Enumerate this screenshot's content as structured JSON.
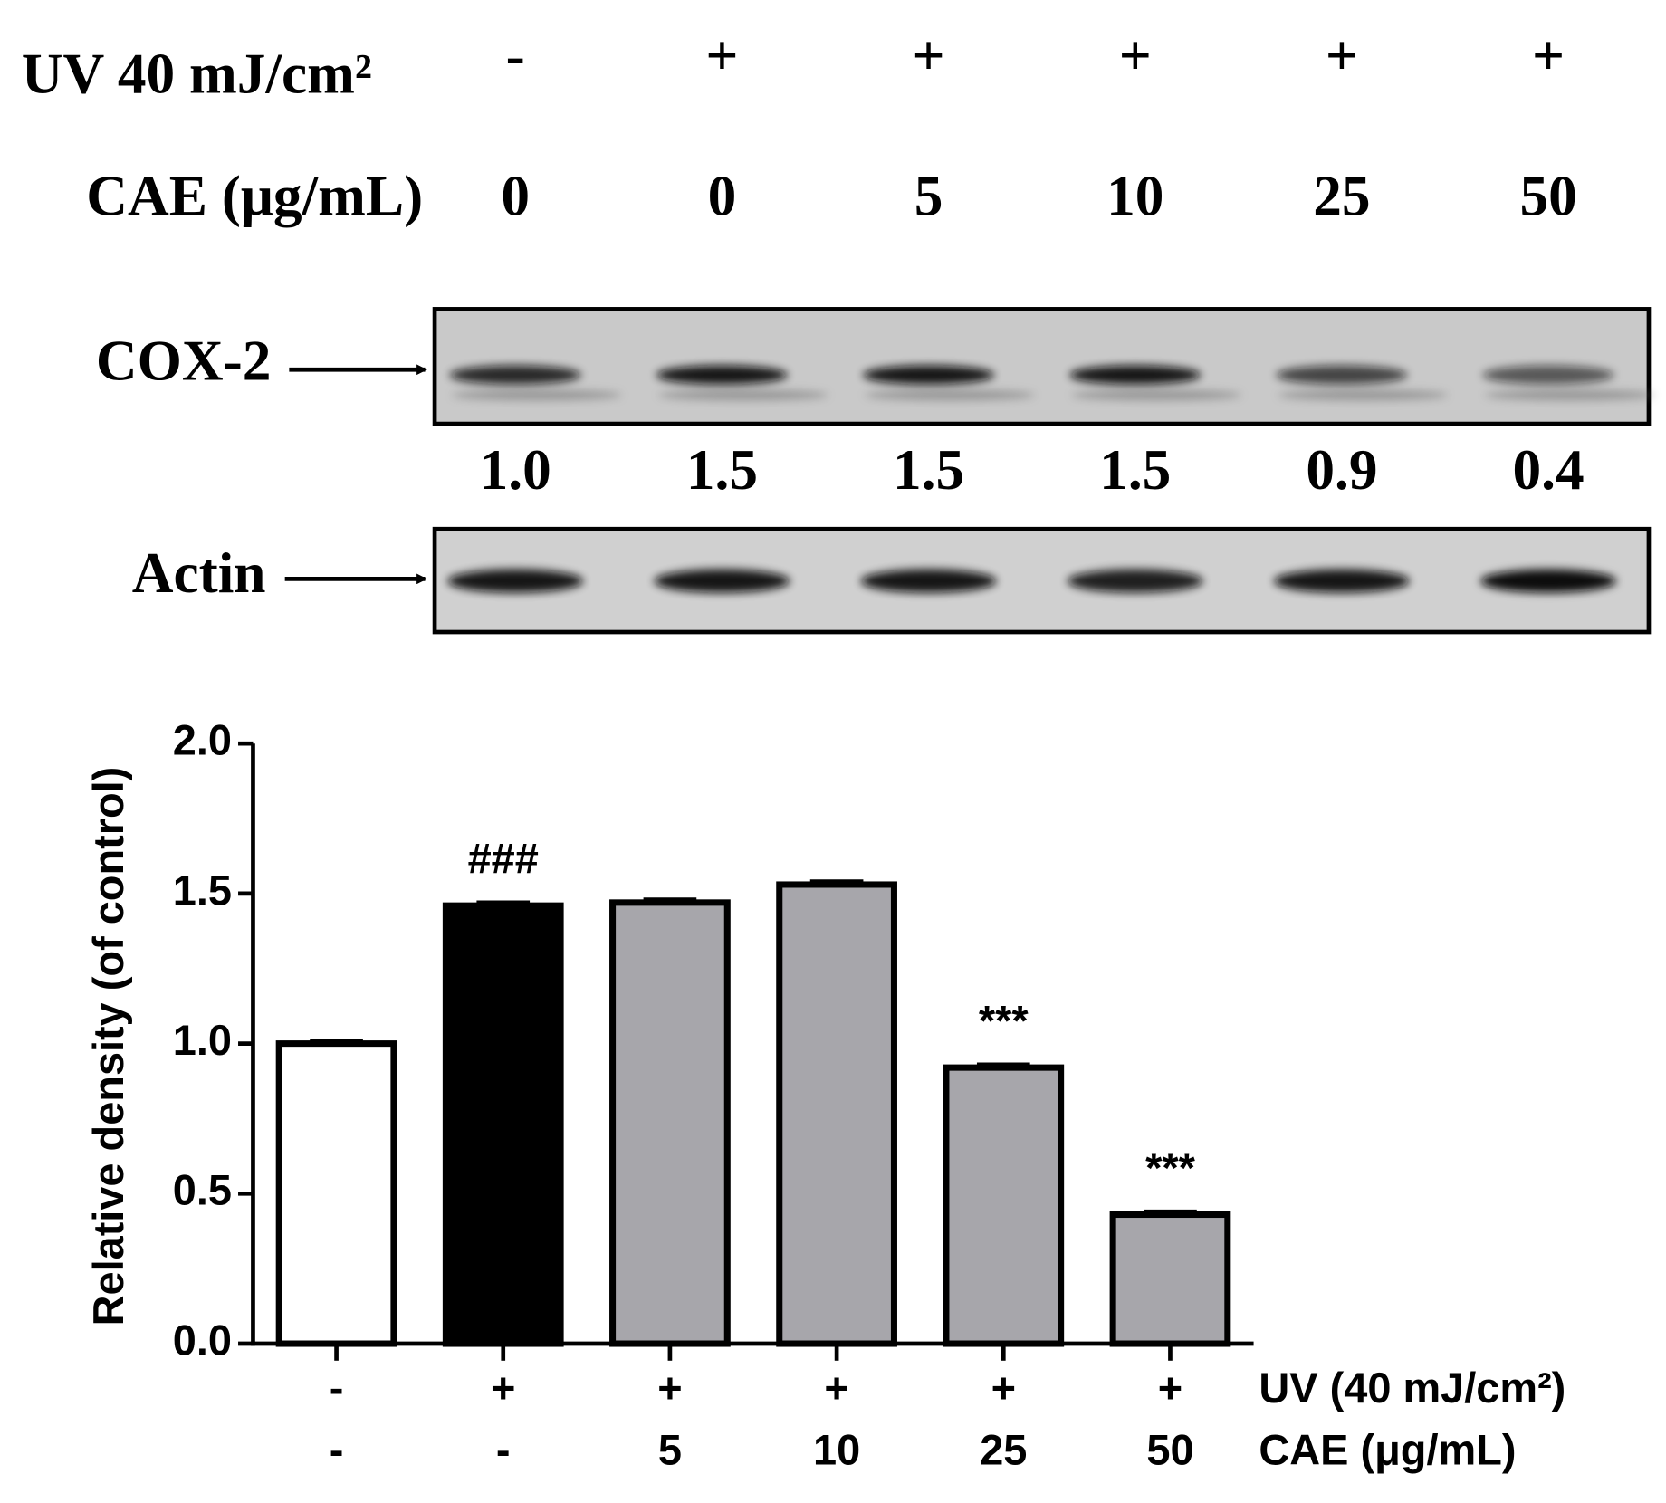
{
  "blot": {
    "uv_label": "UV 40 mJ/cm²",
    "uv": [
      "-",
      "+",
      "+",
      "+",
      "+",
      "+"
    ],
    "cae_label": "CAE (μg/mL)",
    "cae": [
      "0",
      "0",
      "5",
      "10",
      "25",
      "50"
    ],
    "cox2_label": "COX-2",
    "cox2_ratios": [
      "1.0",
      "1.5",
      "1.5",
      "1.5",
      "0.9",
      "0.4"
    ],
    "actin_label": "Actin"
  },
  "chart_data": {
    "type": "bar",
    "y_label": "Relative density (of control)",
    "values": [
      1.0,
      1.46,
      1.47,
      1.53,
      0.92,
      0.43
    ],
    "errors": [
      0.01,
      0.01,
      0.01,
      0.01,
      0.01,
      0.01
    ],
    "colors": [
      "#ffffff",
      "#000000",
      "#a7a6ab",
      "#a7a6ab",
      "#a7a6ab",
      "#a7a6ab"
    ],
    "bar_annotations": [
      null,
      "###",
      null,
      null,
      "***",
      "***"
    ],
    "x_label_rows": [
      {
        "name": "UV (40 mJ/cm²)",
        "labels": [
          "-",
          "+",
          "+",
          "+",
          "+",
          "+"
        ]
      },
      {
        "name": "CAE (μg/mL)",
        "labels": [
          "-",
          "-",
          "5",
          "10",
          "25",
          "50"
        ]
      }
    ],
    "ylim": [
      0,
      2
    ],
    "yticks": [
      {
        "value": 0,
        "label": "0.0"
      },
      {
        "value": 0.5,
        "label": "0.5"
      },
      {
        "value": 1,
        "label": "1.0"
      },
      {
        "value": 1.5,
        "label": "1.5"
      },
      {
        "value": 2,
        "label": "2.0"
      }
    ]
  }
}
